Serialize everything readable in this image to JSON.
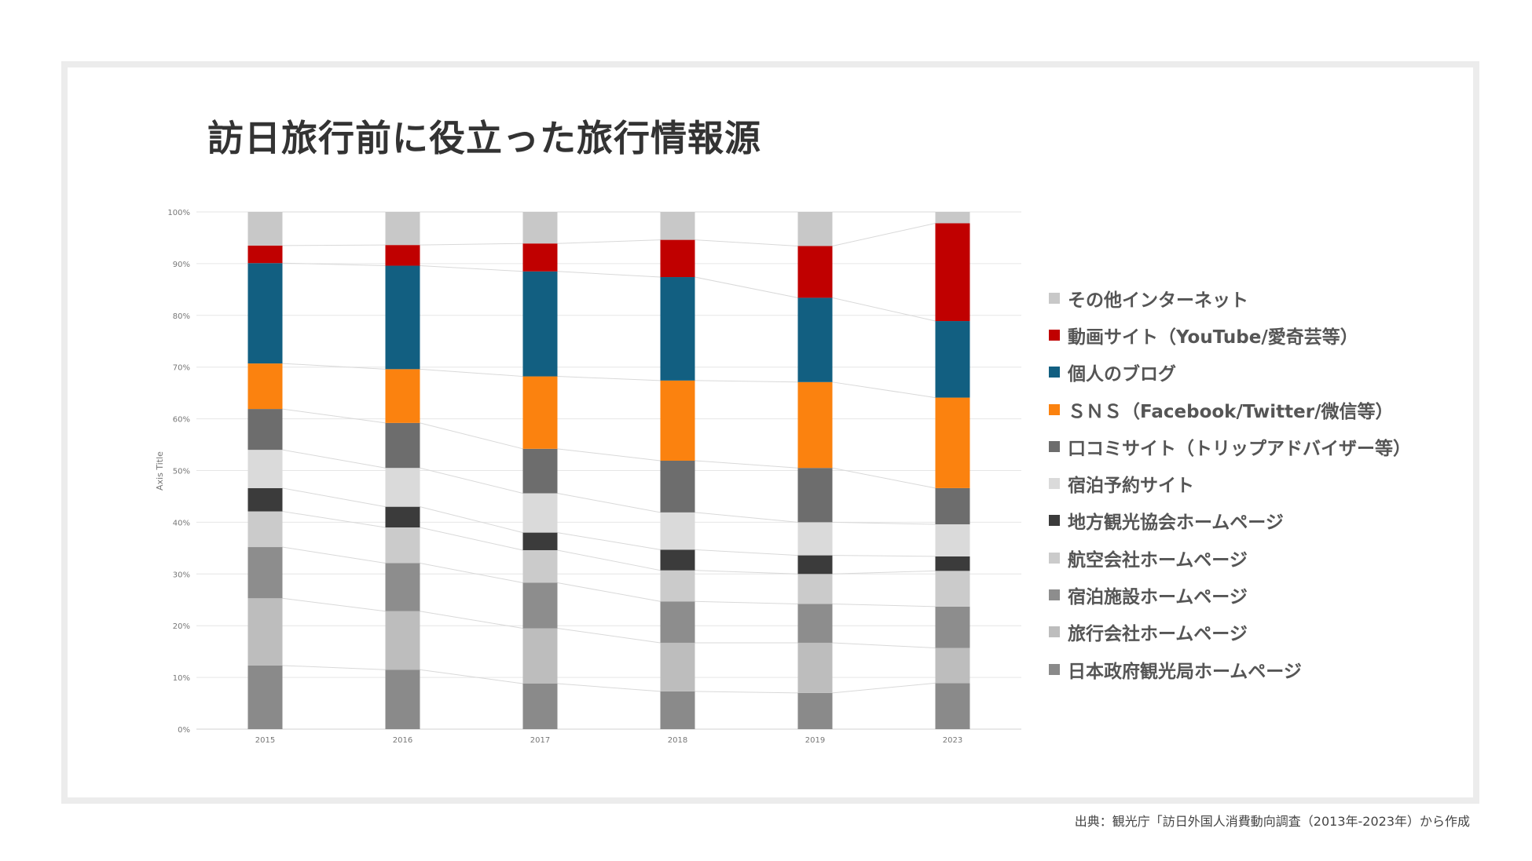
{
  "title": "訪日旅行前に役立った旅行情報源",
  "source_note": "出典：観光庁「訪日外国人消費動向調査（2013年-2023年）から作成",
  "chart_data": {
    "type": "bar",
    "stacked": true,
    "normalized": true,
    "categories": [
      "2015",
      "2016",
      "2017",
      "2018",
      "2019",
      "2023"
    ],
    "ylabel": "Axis Title",
    "xlabel": "",
    "ylim": [
      0,
      100
    ],
    "y_ticks": [
      "0%",
      "10%",
      "20%",
      "30%",
      "40%",
      "50%",
      "60%",
      "70%",
      "80%",
      "90%",
      "100%"
    ],
    "grid": true,
    "series_lines": true,
    "legend_position": "right",
    "series": [
      {
        "name": "日本政府観光局ホームページ",
        "color": "#8a8a8a",
        "values": [
          12.3,
          11.5,
          8.8,
          7.3,
          7.0,
          8.9
        ]
      },
      {
        "name": "旅行会社ホームページ",
        "color": "#bdbdbd",
        "values": [
          13.0,
          11.3,
          10.7,
          9.4,
          9.7,
          6.8
        ]
      },
      {
        "name": "宿泊施設ホームページ",
        "color": "#8d8d8d",
        "values": [
          9.9,
          9.3,
          8.8,
          8.0,
          7.5,
          8.0
        ]
      },
      {
        "name": "航空会社ホームページ",
        "color": "#cbcbcb",
        "values": [
          6.9,
          6.9,
          6.3,
          6.0,
          5.8,
          6.9
        ]
      },
      {
        "name": "地方観光協会ホームページ",
        "color": "#3b3b3b",
        "values": [
          4.5,
          4.0,
          3.4,
          4.0,
          3.6,
          2.8
        ]
      },
      {
        "name": "宿泊予約サイト",
        "color": "#dadada",
        "values": [
          7.4,
          7.5,
          7.6,
          7.2,
          6.4,
          6.2
        ]
      },
      {
        "name": "口コミサイト（トリップアドバイザー等）",
        "color": "#6d6d6d",
        "values": [
          7.9,
          8.7,
          8.6,
          10.0,
          10.5,
          7.0
        ]
      },
      {
        "name": "ＳＮＳ（Facebook/Twitter/微信等）",
        "color": "#fb820f",
        "values": [
          8.8,
          10.4,
          14.0,
          15.5,
          16.6,
          17.5
        ]
      },
      {
        "name": "個人のブログ",
        "color": "#125f81",
        "values": [
          19.4,
          20.0,
          20.3,
          20.0,
          16.3,
          14.8
        ]
      },
      {
        "name": "動画サイト（YouTube/愛奇芸等）",
        "color": "#c00000",
        "values": [
          3.4,
          4.0,
          5.4,
          7.2,
          10.0,
          18.9
        ]
      },
      {
        "name": "その他インターネット",
        "color": "#c8c8c8",
        "values": [
          6.5,
          6.4,
          6.1,
          5.4,
          6.6,
          2.2
        ]
      }
    ]
  }
}
